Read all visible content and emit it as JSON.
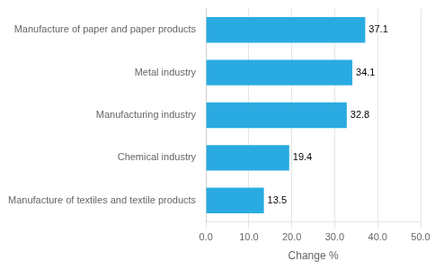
{
  "chart_data": {
    "type": "bar",
    "orientation": "horizontal",
    "categories": [
      "Manufacture of textiles and textile products",
      "Chemical industry",
      "Manufacturing industry",
      "Metal industry",
      "Manufacture of paper and paper products"
    ],
    "values": [
      13.5,
      19.4,
      32.8,
      34.1,
      37.1
    ],
    "color": "#29ABE2",
    "xlabel": "Change %",
    "xlim": [
      0,
      50
    ],
    "xticks": [
      {
        "value": 0,
        "label": "0.0"
      },
      {
        "value": 10,
        "label": "10.0"
      },
      {
        "value": 20,
        "label": "20.0"
      },
      {
        "value": 30,
        "label": "30.0"
      },
      {
        "value": 40,
        "label": "40.0"
      },
      {
        "value": 50,
        "label": "50.0"
      }
    ],
    "grid": true,
    "data_labels": true
  }
}
